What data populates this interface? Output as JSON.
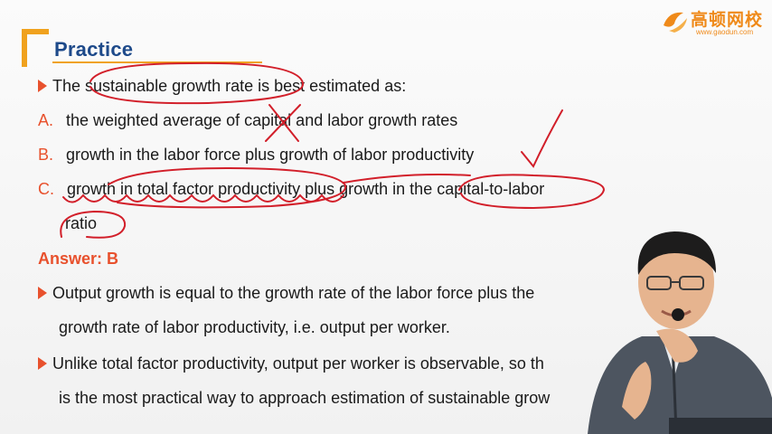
{
  "header": {
    "title": "Practice",
    "logo": {
      "name": "高顿网校",
      "url": "www.gaodun.com"
    }
  },
  "question": {
    "stem": "The sustainable growth rate is best estimated as:",
    "options": [
      {
        "letter": "A.",
        "text": "the weighted average of capital and labor growth rates"
      },
      {
        "letter": "B.",
        "text": "growth in the labor force plus growth of labor productivity"
      },
      {
        "letter": "C.",
        "text": "growth in total factor productivity plus growth in the capital-to-labor",
        "text2": "ratio"
      }
    ]
  },
  "answer": {
    "label": "Answer: B"
  },
  "explanation": {
    "point1_line1": "Output growth is equal to the growth rate of the labor force plus the",
    "point1_line2": "growth rate of labor productivity, i.e. output per worker.",
    "point2_line1": "Unlike total factor productivity, output per worker is observable, so th",
    "point2_line2": "is the most practical way to approach estimation of sustainable grow"
  },
  "colors": {
    "title_blue": "#1e4a8a",
    "accent_orange": "#f0a21e",
    "marker_red": "#e8512d",
    "ink_red": "#d21f2a"
  },
  "icons": [
    "bullet-arrow-icon",
    "logo-icon",
    "presenter-image"
  ]
}
